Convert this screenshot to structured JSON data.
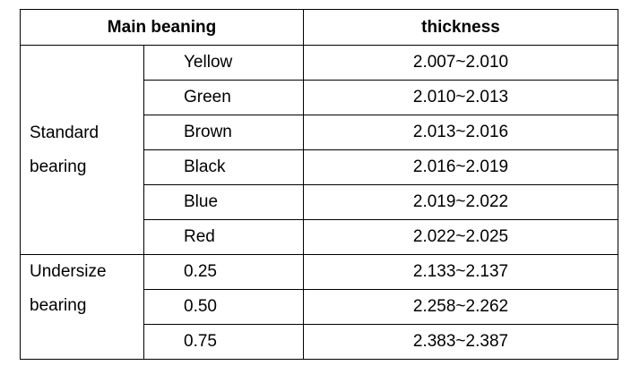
{
  "header": {
    "main_bearing": "Main beaning",
    "thickness": "thickness"
  },
  "groups": [
    {
      "label_line1": "Standard",
      "label_line2": "bearing",
      "rows": [
        {
          "name": "Yellow",
          "thickness": "2.007~2.010"
        },
        {
          "name": "Green",
          "thickness": "2.010~2.013"
        },
        {
          "name": "Brown",
          "thickness": "2.013~2.016"
        },
        {
          "name": "Black",
          "thickness": "2.016~2.019"
        },
        {
          "name": "Blue",
          "thickness": "2.019~2.022"
        },
        {
          "name": "Red",
          "thickness": "2.022~2.025"
        }
      ]
    },
    {
      "label_line1": "Undersize",
      "label_line2": "bearing",
      "rows": [
        {
          "name": "0.25",
          "thickness": "2.133~2.137"
        },
        {
          "name": "0.50",
          "thickness": "2.258~2.262"
        },
        {
          "name": "0.75",
          "thickness": "2.383~2.387"
        }
      ]
    }
  ]
}
